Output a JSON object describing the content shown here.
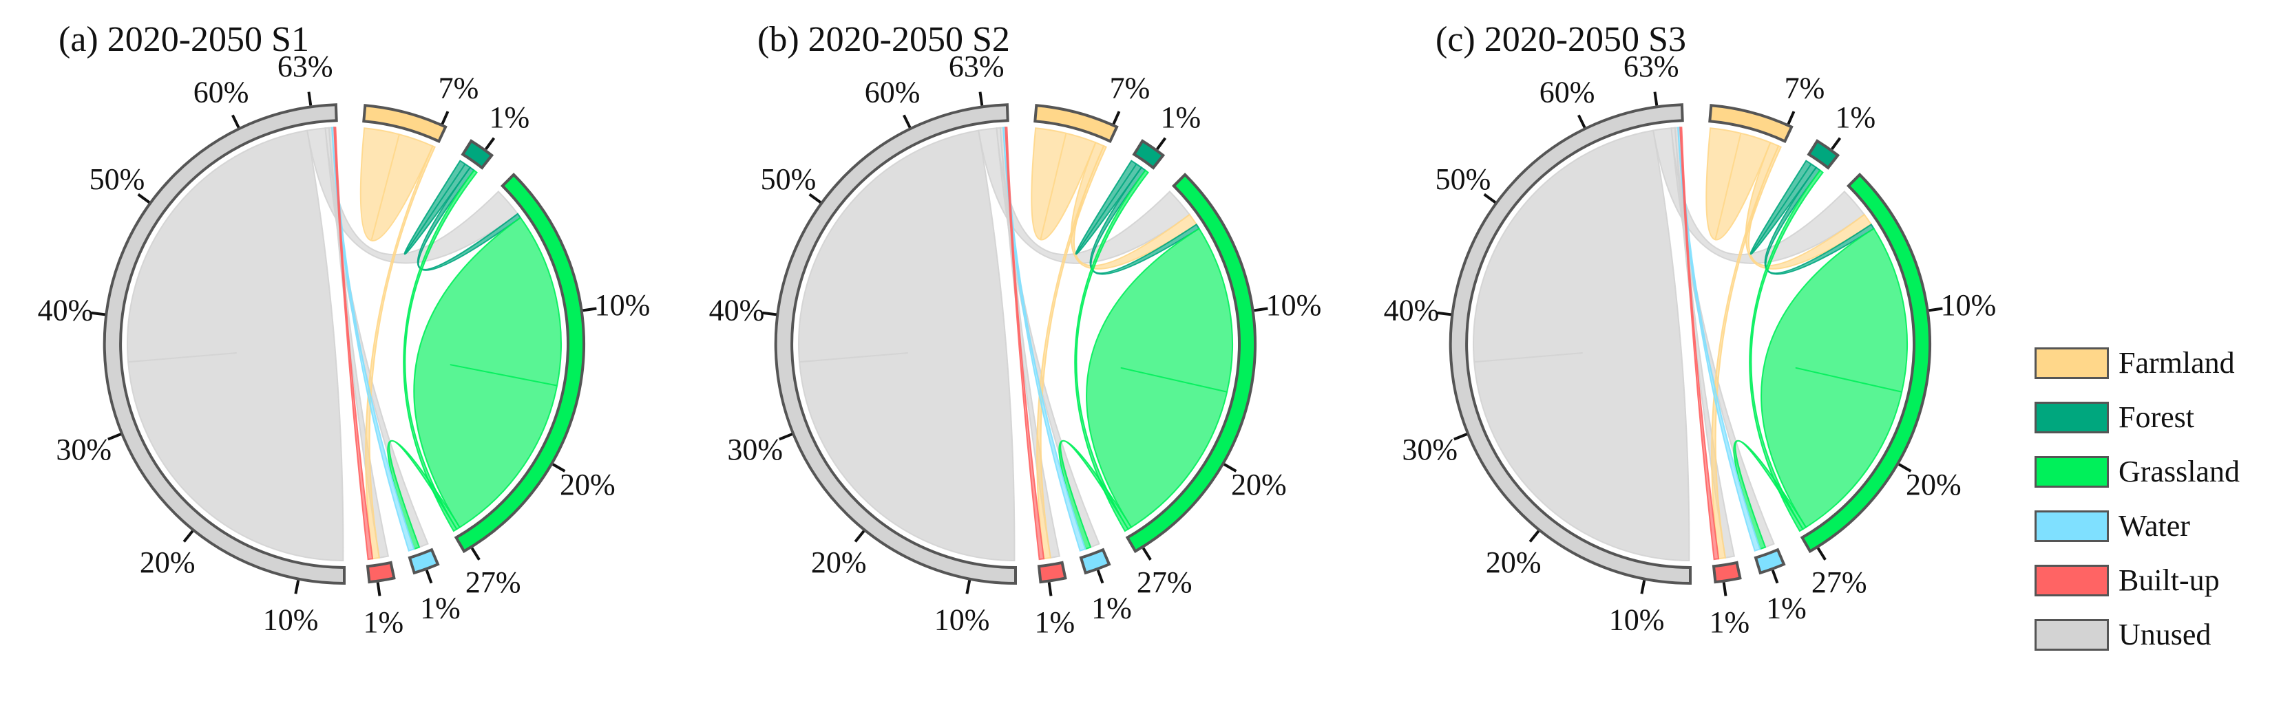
{
  "panels": [
    {
      "title": "(a) 2020-2050 S1"
    },
    {
      "title": "(b) 2020-2050 S2"
    },
    {
      "title": "(c) 2020-2050 S3"
    }
  ],
  "colors": {
    "Farmland": "#FFD78A",
    "Forest": "#00A77E",
    "Grassland": "#00F05A",
    "Water": "#7FE0FF",
    "Built-up": "#FF6464",
    "Unused": "#D3D3D3"
  },
  "legend": [
    {
      "label": "Farmland",
      "color": "#FFD78A"
    },
    {
      "label": "Forest",
      "color": "#00A77E"
    },
    {
      "label": "Grassland",
      "color": "#00F05A"
    },
    {
      "label": "Water",
      "color": "#7FE0FF"
    },
    {
      "label": "Built-up",
      "color": "#FF6464"
    },
    {
      "label": "Unused",
      "color": "#D3D3D3"
    }
  ],
  "chart_data": {
    "type": "chord",
    "unit": "% of total area",
    "categories": [
      "Farmland",
      "Forest",
      "Grassland",
      "Water",
      "Built-up",
      "Unused"
    ],
    "category_shares": {
      "Farmland": 7,
      "Forest": 1,
      "Grassland": 27,
      "Water": 1,
      "Built-up": 1,
      "Unused": 63
    },
    "tick_labels": {
      "Unused": [
        "10%",
        "20%",
        "30%",
        "40%",
        "50%",
        "60%",
        "63%"
      ],
      "Farmland": [
        "7%"
      ],
      "Forest": [
        "1%"
      ],
      "Grassland": [
        "10%",
        "20%",
        "27%"
      ],
      "Water": [
        "1%"
      ],
      "Built-up": [
        "1%"
      ]
    },
    "panels": [
      {
        "title": "(a) 2020-2050 S1",
        "flows": [
          {
            "from": "Unused",
            "to": "Unused",
            "value": 44
          },
          {
            "from": "Unused",
            "to": "Grassland",
            "value": 2.5
          },
          {
            "from": "Unused",
            "to": "Water",
            "value": 0.5
          },
          {
            "from": "Unused",
            "to": "Built-up",
            "value": 0.4
          },
          {
            "from": "Farmland",
            "to": "Farmland",
            "value": 4.5
          },
          {
            "from": "Farmland",
            "to": "Built-up",
            "value": 0.3
          },
          {
            "from": "Forest",
            "to": "Forest",
            "value": 0.5
          },
          {
            "from": "Forest",
            "to": "Grassland",
            "value": 0.4
          },
          {
            "from": "Grassland",
            "to": "Grassland",
            "value": 15
          },
          {
            "from": "Grassland",
            "to": "Water",
            "value": 0.3
          },
          {
            "from": "Grassland",
            "to": "Forest",
            "value": 0.3
          },
          {
            "from": "Water",
            "to": "Unused",
            "value": 0.3
          },
          {
            "from": "Built-up",
            "to": "Unused",
            "value": 0.2
          }
        ]
      },
      {
        "title": "(b) 2020-2050 S2",
        "flows": [
          {
            "from": "Unused",
            "to": "Unused",
            "value": 44
          },
          {
            "from": "Unused",
            "to": "Grassland",
            "value": 2.5
          },
          {
            "from": "Unused",
            "to": "Water",
            "value": 0.5
          },
          {
            "from": "Unused",
            "to": "Built-up",
            "value": 0.4
          },
          {
            "from": "Farmland",
            "to": "Farmland",
            "value": 3.5
          },
          {
            "from": "Farmland",
            "to": "Grassland",
            "value": 1.0
          },
          {
            "from": "Farmland",
            "to": "Built-up",
            "value": 0.3
          },
          {
            "from": "Forest",
            "to": "Forest",
            "value": 0.5
          },
          {
            "from": "Forest",
            "to": "Grassland",
            "value": 0.4
          },
          {
            "from": "Grassland",
            "to": "Grassland",
            "value": 14
          },
          {
            "from": "Grassland",
            "to": "Water",
            "value": 0.3
          },
          {
            "from": "Grassland",
            "to": "Forest",
            "value": 0.3
          },
          {
            "from": "Water",
            "to": "Unused",
            "value": 0.3
          },
          {
            "from": "Built-up",
            "to": "Unused",
            "value": 0.2
          }
        ]
      },
      {
        "title": "(c) 2020-2050 S3",
        "flows": [
          {
            "from": "Unused",
            "to": "Unused",
            "value": 44
          },
          {
            "from": "Unused",
            "to": "Grassland",
            "value": 2.5
          },
          {
            "from": "Unused",
            "to": "Water",
            "value": 0.5
          },
          {
            "from": "Unused",
            "to": "Built-up",
            "value": 0.4
          },
          {
            "from": "Farmland",
            "to": "Farmland",
            "value": 3.5
          },
          {
            "from": "Farmland",
            "to": "Grassland",
            "value": 1.0
          },
          {
            "from": "Farmland",
            "to": "Built-up",
            "value": 0.3
          },
          {
            "from": "Forest",
            "to": "Forest",
            "value": 0.5
          },
          {
            "from": "Forest",
            "to": "Grassland",
            "value": 0.4
          },
          {
            "from": "Grassland",
            "to": "Grassland",
            "value": 14
          },
          {
            "from": "Grassland",
            "to": "Water",
            "value": 0.3
          },
          {
            "from": "Grassland",
            "to": "Forest",
            "value": 0.3
          },
          {
            "from": "Water",
            "to": "Unused",
            "value": 0.3
          },
          {
            "from": "Built-up",
            "to": "Unused",
            "value": 0.2
          }
        ]
      }
    ]
  }
}
